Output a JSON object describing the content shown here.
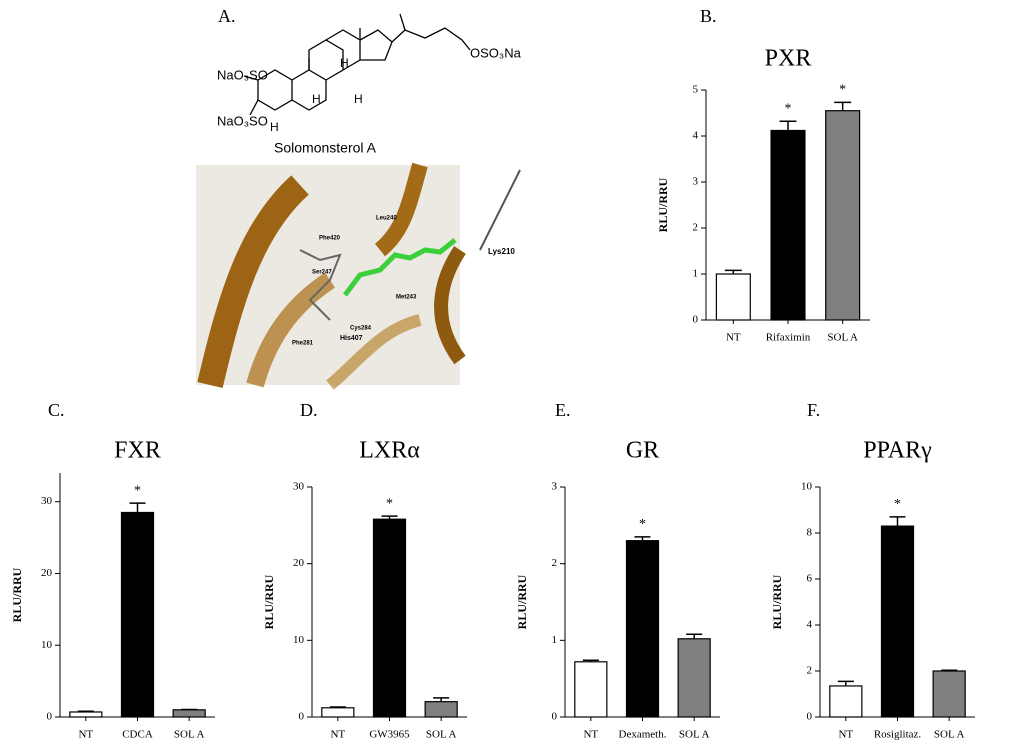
{
  "panel_a": {
    "label": "A.",
    "caption": "Solomonsterol A",
    "structure_labels": [
      "NaO₃SO",
      "NaO₃SO",
      "OSO₃Na",
      "H",
      "H",
      "H",
      "H"
    ],
    "residues": [
      "Leu240",
      "Phe420",
      "Ser247",
      "Met243",
      "Lys210",
      "Cys284",
      "His407",
      "Phe281"
    ]
  },
  "chart_data": [
    {
      "type": "bar",
      "panel": "B.",
      "title": "PXR",
      "y_label": "RLU/RRU",
      "categories": [
        "NT",
        "Rifaximin",
        "SOL A"
      ],
      "values": [
        1.0,
        4.12,
        4.55
      ],
      "errors": [
        0.08,
        0.2,
        0.18
      ],
      "markers": [
        null,
        "*",
        "*"
      ],
      "colors": [
        "#ffffff",
        "#000000",
        "#808080"
      ],
      "ylim": [
        0,
        5
      ],
      "yticks": [
        0,
        1,
        2,
        3,
        4,
        5
      ]
    },
    {
      "type": "bar",
      "panel": "C.",
      "title": "FXR",
      "y_label": "RLU/RRU",
      "categories": [
        "NT",
        "CDCA",
        "SOL A"
      ],
      "values": [
        0.7,
        28.5,
        1.0
      ],
      "errors": [
        0.1,
        1.3,
        0.05
      ],
      "markers": [
        null,
        "*",
        null
      ],
      "colors": [
        "#ffffff",
        "#000000",
        "#808080"
      ],
      "ylim": [
        0,
        34
      ],
      "yticks": [
        0,
        10,
        20,
        30
      ]
    },
    {
      "type": "bar",
      "panel": "D.",
      "title": "LXRα",
      "y_label": "RLU/RRU",
      "categories": [
        "NT",
        "GW3965",
        "SOL A"
      ],
      "values": [
        1.2,
        25.8,
        2.0
      ],
      "errors": [
        0.1,
        0.4,
        0.5
      ],
      "markers": [
        null,
        "*",
        null
      ],
      "colors": [
        "#ffffff",
        "#000000",
        "#808080"
      ],
      "ylim": [
        0,
        30
      ],
      "yticks": [
        0,
        10,
        20,
        30
      ]
    },
    {
      "type": "bar",
      "panel": "E.",
      "title": "GR",
      "y_label": "RLU/RRU",
      "categories": [
        "NT",
        "Dexameth.",
        "SOL A"
      ],
      "values": [
        0.72,
        2.3,
        1.02
      ],
      "errors": [
        0.02,
        0.05,
        0.06
      ],
      "markers": [
        null,
        "*",
        null
      ],
      "colors": [
        "#ffffff",
        "#000000",
        "#808080"
      ],
      "ylim": [
        0,
        3
      ],
      "yticks": [
        0,
        1,
        2,
        3
      ]
    },
    {
      "type": "bar",
      "panel": "F.",
      "title": "PPARγ",
      "y_label": "RLU/RRU",
      "categories": [
        "NT",
        "Rosiglitaz.",
        "SOL A"
      ],
      "values": [
        1.35,
        8.3,
        2.0
      ],
      "errors": [
        0.2,
        0.4,
        0.03
      ],
      "markers": [
        null,
        "*",
        null
      ],
      "colors": [
        "#ffffff",
        "#000000",
        "#808080"
      ],
      "ylim": [
        0,
        10
      ],
      "yticks": [
        0,
        2,
        4,
        6,
        8,
        10
      ]
    }
  ]
}
